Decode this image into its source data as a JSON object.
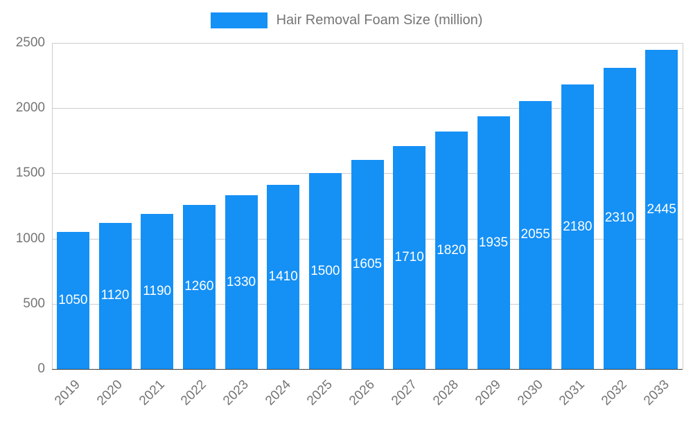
{
  "chart_data": {
    "type": "bar",
    "title": "Hair Removal Foam Size (million)",
    "categories": [
      "2019",
      "2020",
      "2021",
      "2022",
      "2023",
      "2024",
      "2025",
      "2026",
      "2027",
      "2028",
      "2029",
      "2030",
      "2031",
      "2032",
      "2033"
    ],
    "values": [
      1050,
      1120,
      1190,
      1260,
      1330,
      1410,
      1500,
      1605,
      1710,
      1820,
      1935,
      2055,
      2180,
      2310,
      2445
    ],
    "xlabel": "",
    "ylabel": "",
    "ylim": [
      0,
      2500
    ],
    "yticks": [
      0,
      500,
      1000,
      1500,
      2000,
      2500
    ],
    "grid": true,
    "legend_position": "top",
    "bar_color": "#1590f5",
    "value_label_color": "#ffffff",
    "axis_text_color": "#757575",
    "gridline_color": "#cccccc",
    "baseline_color": "#404040"
  }
}
